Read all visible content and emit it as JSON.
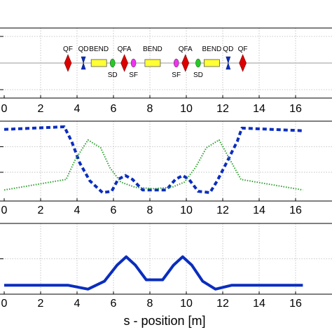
{
  "chart_data": [
    {
      "type": "line",
      "title": "",
      "xlabel": "",
      "ylabel": "",
      "xlim": [
        0,
        16.6
      ],
      "ylim": [
        -1,
        1
      ],
      "xticks": [
        0,
        2,
        4,
        6,
        8,
        10,
        12,
        14,
        16
      ],
      "grid": true,
      "elements": [
        {
          "name": "QF",
          "kind": "quad_focus",
          "s": 3.5,
          "color": "#dd0000"
        },
        {
          "name": "QD",
          "kind": "quad_defocus",
          "s": 4.35,
          "color": "#0a2dbf"
        },
        {
          "name": "BEND",
          "kind": "dipole",
          "s": 5.2,
          "color": "#ffff33"
        },
        {
          "name": "SD",
          "kind": "sextupole",
          "s": 5.95,
          "color": "#22cc22"
        },
        {
          "name": "QFA",
          "kind": "quad_focus",
          "s": 6.6,
          "color": "#dd0000"
        },
        {
          "name": "SF",
          "kind": "sextupole",
          "s": 7.1,
          "color": "#ee33ee"
        },
        {
          "name": "BEND",
          "kind": "dipole",
          "s": 8.15,
          "color": "#ffff33"
        },
        {
          "name": "SF",
          "kind": "sextupole",
          "s": 9.45,
          "color": "#ee33ee"
        },
        {
          "name": "QFA",
          "kind": "quad_focus",
          "s": 9.95,
          "color": "#dd0000"
        },
        {
          "name": "SD",
          "kind": "sextupole",
          "s": 10.65,
          "color": "#22cc22"
        },
        {
          "name": "BEND",
          "kind": "dipole",
          "s": 11.4,
          "color": "#ffff33"
        },
        {
          "name": "QD",
          "kind": "quad_defocus",
          "s": 12.3,
          "color": "#0a2dbf"
        },
        {
          "name": "QF",
          "kind": "quad_focus",
          "s": 13.1,
          "color": "#dd0000"
        }
      ]
    },
    {
      "type": "line",
      "title": "",
      "xlabel": "",
      "ylabel": "",
      "xlim": [
        0,
        16.6
      ],
      "ylim": [
        0,
        1.15
      ],
      "xticks": [
        0,
        2,
        4,
        6,
        8,
        10,
        12,
        14,
        16
      ],
      "grid": true,
      "series": [
        {
          "style": "dashed",
          "color": "#0a2dbf",
          "x": [
            0,
            3.3,
            3.7,
            4.15,
            4.7,
            5.4,
            5.9,
            6.25,
            6.65,
            7.05,
            7.6,
            8.2,
            8.9,
            9.4,
            9.8,
            10.15,
            10.65,
            11.3,
            11.7,
            12.2,
            12.8,
            13.05,
            16.4
          ],
          "y": [
            0.96,
            1.0,
            0.78,
            0.45,
            0.18,
            0.0,
            0.02,
            0.2,
            0.26,
            0.2,
            0.04,
            0.04,
            0.04,
            0.2,
            0.26,
            0.2,
            0.02,
            0.0,
            0.18,
            0.45,
            0.78,
            0.98,
            0.94
          ]
        },
        {
          "style": "dotted",
          "color": "#2ea02e",
          "x": [
            0,
            3.4,
            3.9,
            4.6,
            5.3,
            5.8,
            6.4,
            7.2,
            8.2,
            9.2,
            9.9,
            10.5,
            11.1,
            11.8,
            12.4,
            13.0,
            16.4
          ],
          "y": [
            0.04,
            0.2,
            0.5,
            0.8,
            0.68,
            0.38,
            0.16,
            0.08,
            0.06,
            0.08,
            0.16,
            0.38,
            0.68,
            0.8,
            0.5,
            0.2,
            0.04
          ]
        }
      ]
    },
    {
      "type": "line",
      "title": "",
      "xlabel": "s - position [m]",
      "ylabel": "",
      "xlim": [
        0,
        16.6
      ],
      "ylim": [
        0,
        1
      ],
      "xticks": [
        0,
        2,
        4,
        6,
        8,
        10,
        12,
        14,
        16
      ],
      "grid": true,
      "series": [
        {
          "style": "solid",
          "color": "#0a2dbf",
          "x": [
            0,
            3.5,
            4.6,
            5.5,
            6.2,
            6.7,
            7.2,
            7.8,
            8.7,
            9.3,
            9.8,
            10.3,
            10.9,
            11.6,
            12.5,
            13.2,
            16.4
          ],
          "y": [
            0.14,
            0.14,
            0.06,
            0.22,
            0.55,
            0.72,
            0.55,
            0.25,
            0.25,
            0.55,
            0.72,
            0.55,
            0.22,
            0.06,
            0.14,
            0.14,
            0.14
          ]
        }
      ]
    }
  ]
}
